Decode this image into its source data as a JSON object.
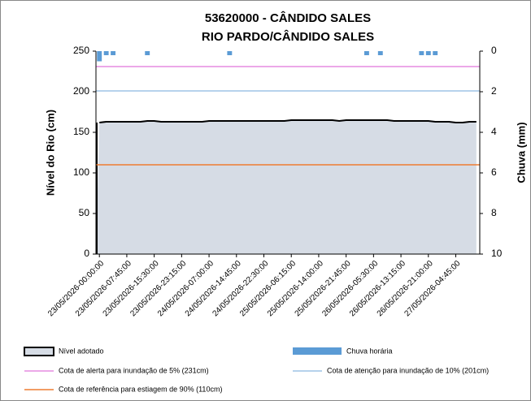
{
  "chart_data": {
    "type": "area",
    "title": "53620000 - CÂNDIDO SALES",
    "subtitle": "RIO PARDO/CÂNDIDO SALES",
    "y_label": "Nível do Rio (cm)",
    "y2_label": "Chuva (mm)",
    "categories": [
      "23/05/2026-00:00:00",
      null,
      null,
      null,
      "23/05/2026-07:45:00",
      null,
      null,
      null,
      "23/05/2026-15:30:00",
      null,
      null,
      null,
      "23/05/2026-23:15:00",
      null,
      null,
      null,
      "24/05/2026-07:00:00",
      null,
      null,
      null,
      "24/05/2026-14:45:00",
      null,
      null,
      null,
      "24/05/2026-22:30:00",
      null,
      null,
      null,
      "25/05/2026-06:15:00",
      null,
      null,
      null,
      "25/05/2026-14:00:00",
      null,
      null,
      null,
      "25/05/2026-21:45:00",
      null,
      null,
      null,
      "26/05/2026-05:30:00",
      null,
      null,
      null,
      "26/05/2026-13:15:00",
      null,
      null,
      null,
      "26/05/2026-21:00:00",
      null,
      null,
      null,
      "27/05/2026-04:45:00",
      null,
      null,
      null
    ],
    "series": [
      {
        "name": "Nível adotado",
        "color": "#000000",
        "fill": "#d6dce5",
        "values": [
          162,
          163,
          163,
          163,
          163,
          163,
          163,
          164,
          164,
          163,
          163,
          163,
          163,
          163,
          163,
          163,
          164,
          164,
          164,
          164,
          164,
          164,
          164,
          164,
          164,
          164,
          164,
          164,
          165,
          165,
          165,
          165,
          165,
          165,
          165,
          164,
          165,
          165,
          165,
          165,
          165,
          165,
          165,
          164,
          164,
          164,
          164,
          164,
          164,
          163,
          163,
          163,
          162,
          162,
          163,
          163
        ]
      },
      {
        "name": "Chuva horária",
        "color": "#5b9bd5",
        "axis": "y2",
        "values": [
          0.5,
          0.2,
          0.2,
          0,
          0,
          0,
          0,
          0.2,
          0,
          0,
          0,
          0,
          0,
          0,
          0,
          0,
          0,
          0,
          0,
          0.2,
          0,
          0,
          0,
          0,
          0,
          0,
          0,
          0,
          0,
          0,
          0,
          0,
          0,
          0,
          0,
          0,
          0,
          0,
          0,
          0.2,
          0,
          0.2,
          0,
          0,
          0,
          0,
          0,
          0.2,
          0.2,
          0.2,
          0,
          0,
          0,
          0,
          0,
          0
        ]
      }
    ],
    "reference_lines": [
      {
        "name": "Cota de alerta para inundação de 5% (231cm)",
        "value": 231,
        "color": "#e58be0"
      },
      {
        "name": "Cota de atenção para inundação de 10% (201cm)",
        "value": 201,
        "color": "#9dc3e6"
      },
      {
        "name": "Cota de referência para estiagem de 90% (110cm)",
        "value": 110,
        "color": "#ed7d31"
      }
    ],
    "ylim": [
      0,
      250
    ],
    "yticks": [
      0,
      50,
      100,
      150,
      200,
      250
    ],
    "y2lim": [
      0,
      10
    ],
    "y2ticks": [
      0,
      2,
      4,
      6,
      8,
      10
    ],
    "y2_inverted": true
  }
}
